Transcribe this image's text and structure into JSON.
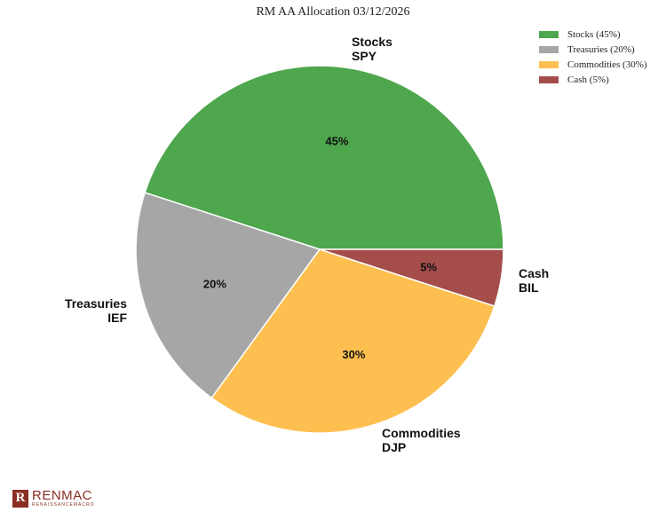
{
  "chart_data": {
    "type": "pie",
    "title": "RM AA Allocation 03/12/2026",
    "legend_position": "top-right",
    "slices": [
      {
        "label": "Stocks",
        "ticker": "SPY",
        "value": 45,
        "pct_label": "45%",
        "legend": "Stocks (45%)",
        "color": "#4ea64d"
      },
      {
        "label": "Treasuries",
        "ticker": "IEF",
        "value": 20,
        "pct_label": "20%",
        "legend": "Treasuries (20%)",
        "color": "#a6a6a6"
      },
      {
        "label": "Commodities",
        "ticker": "DJP",
        "value": 30,
        "pct_label": "30%",
        "legend": "Commodities (30%)",
        "color": "#fdbf4f"
      },
      {
        "label": "Cash",
        "ticker": "BIL",
        "value": 5,
        "pct_label": "5%",
        "legend": "Cash (5%)",
        "color": "#a44d4b"
      }
    ]
  },
  "logo": {
    "mark": "R",
    "name": "RENMAC",
    "tagline": "RENAISSANCEMACRO"
  }
}
